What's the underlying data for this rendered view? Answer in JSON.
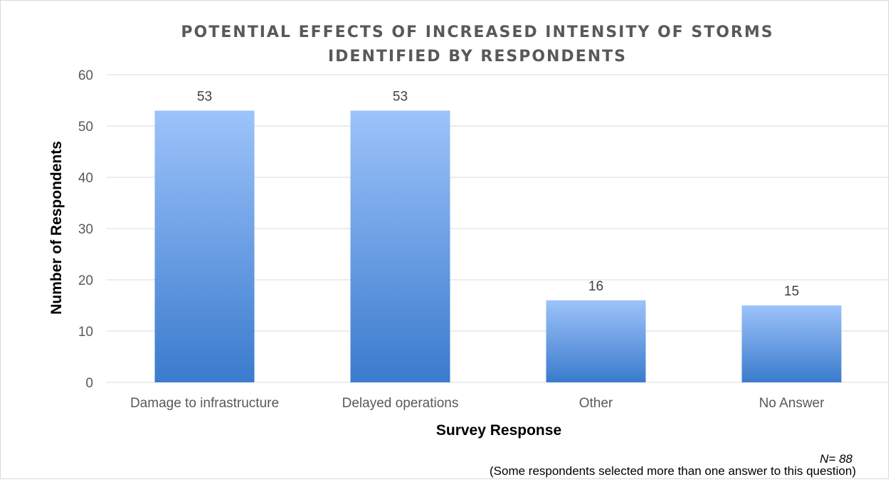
{
  "chart_data": {
    "type": "bar",
    "title": "POTENTIAL EFFECTS OF INCREASED INTENSITY OF STORMS\nIDENTIFIED BY RESPONDENTS",
    "xlabel": "Survey Response",
    "ylabel": "Number of Respondents",
    "categories": [
      "Damage to infrastructure",
      "Delayed operations",
      "Other",
      "No Answer"
    ],
    "values": [
      53,
      53,
      16,
      15
    ],
    "data_labels": [
      "53",
      "53",
      "16",
      "15"
    ],
    "ylim": [
      0,
      60
    ],
    "yticks": [
      "0",
      "10",
      "20",
      "30",
      "40",
      "50",
      "60"
    ],
    "grid": true,
    "legend": "none",
    "colors": {
      "bar_top": "#9DC3FA",
      "bar_bottom": "#3A7BCD",
      "grid": "#d9d9d9"
    }
  },
  "footnote": {
    "sample_size": "N= 88",
    "note": "(Some respondents selected more than one answer to this question)"
  }
}
